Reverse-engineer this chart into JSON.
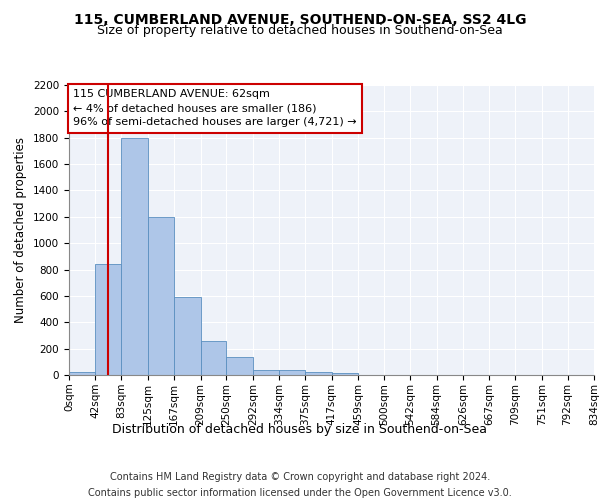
{
  "title1": "115, CUMBERLAND AVENUE, SOUTHEND-ON-SEA, SS2 4LG",
  "title2": "Size of property relative to detached houses in Southend-on-Sea",
  "xlabel": "Distribution of detached houses by size in Southend-on-Sea",
  "ylabel": "Number of detached properties",
  "footer1": "Contains HM Land Registry data © Crown copyright and database right 2024.",
  "footer2": "Contains public sector information licensed under the Open Government Licence v3.0.",
  "annotation_line1": "115 CUMBERLAND AVENUE: 62sqm",
  "annotation_line2": "← 4% of detached houses are smaller (186)",
  "annotation_line3": "96% of semi-detached houses are larger (4,721) →",
  "property_sqm": 62,
  "bin_edges": [
    0,
    42,
    83,
    125,
    167,
    209,
    250,
    292,
    334,
    375,
    417,
    459,
    500,
    542,
    584,
    626,
    667,
    709,
    751,
    792,
    834
  ],
  "bar_heights": [
    25,
    845,
    1800,
    1200,
    590,
    255,
    135,
    35,
    35,
    25,
    15,
    0,
    0,
    0,
    0,
    0,
    0,
    0,
    0,
    0
  ],
  "bar_color": "#aec6e8",
  "bar_edge_color": "#5a8fc0",
  "vline_color": "#cc0000",
  "annotation_box_color": "#cc0000",
  "background_color": "#eef2f9",
  "fig_background_color": "#ffffff",
  "ylim": [
    0,
    2200
  ],
  "yticks": [
    0,
    200,
    400,
    600,
    800,
    1000,
    1200,
    1400,
    1600,
    1800,
    2000,
    2200
  ],
  "title1_fontsize": 10,
  "title2_fontsize": 9,
  "xlabel_fontsize": 9,
  "ylabel_fontsize": 8.5,
  "tick_fontsize": 7.5,
  "annotation_fontsize": 8,
  "footer_fontsize": 7
}
